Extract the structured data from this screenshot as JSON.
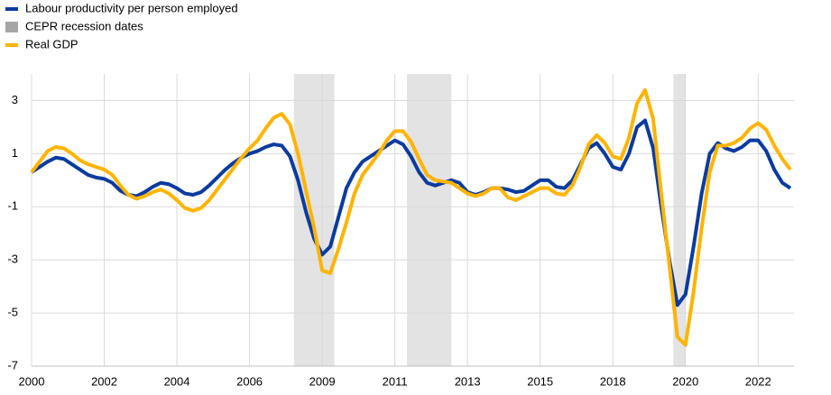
{
  "chart_data": {
    "type": "line",
    "x": [
      2000,
      2000.25,
      2000.5,
      2000.75,
      2001,
      2001.25,
      2001.5,
      2001.75,
      2002,
      2002.25,
      2002.5,
      2002.75,
      2003,
      2003.25,
      2003.5,
      2003.75,
      2004,
      2004.25,
      2004.5,
      2004.75,
      2005,
      2005.25,
      2005.5,
      2005.75,
      2006,
      2006.25,
      2006.5,
      2006.75,
      2007,
      2007.25,
      2007.5,
      2007.75,
      2008,
      2008.25,
      2008.5,
      2008.75,
      2009,
      2009.25,
      2009.5,
      2009.75,
      2010,
      2010.25,
      2010.5,
      2010.75,
      2011,
      2011.25,
      2011.5,
      2011.75,
      2012,
      2012.25,
      2012.5,
      2012.75,
      2013,
      2013.25,
      2013.5,
      2013.75,
      2014,
      2014.25,
      2014.5,
      2014.75,
      2015,
      2015.25,
      2015.5,
      2015.75,
      2016,
      2016.25,
      2016.5,
      2016.75,
      2017,
      2017.25,
      2017.5,
      2017.75,
      2018,
      2018.25,
      2018.5,
      2018.75,
      2019,
      2019.25,
      2019.5,
      2019.75,
      2020,
      2020.25,
      2020.5,
      2020.75,
      2021,
      2021.25,
      2021.5,
      2021.75,
      2022,
      2022.25,
      2022.5,
      2022.75,
      2023,
      2023.25,
      2023.5
    ],
    "series": [
      {
        "name": "Labour productivity per person employed",
        "color": "#0b3b9e",
        "values": [
          0.3,
          0.5,
          0.7,
          0.85,
          0.8,
          0.6,
          0.4,
          0.2,
          0.1,
          0.05,
          -0.1,
          -0.4,
          -0.55,
          -0.6,
          -0.45,
          -0.25,
          -0.1,
          -0.15,
          -0.3,
          -0.5,
          -0.55,
          -0.45,
          -0.2,
          0.1,
          0.4,
          0.65,
          0.85,
          1.0,
          1.1,
          1.25,
          1.35,
          1.3,
          0.9,
          0.0,
          -1.2,
          -2.2,
          -2.8,
          -2.5,
          -1.4,
          -0.3,
          0.3,
          0.7,
          0.9,
          1.1,
          1.3,
          1.5,
          1.35,
          0.9,
          0.3,
          -0.1,
          -0.2,
          -0.1,
          0.0,
          -0.1,
          -0.45,
          -0.55,
          -0.45,
          -0.3,
          -0.3,
          -0.35,
          -0.45,
          -0.4,
          -0.2,
          0.0,
          0.0,
          -0.25,
          -0.3,
          0.0,
          0.6,
          1.2,
          1.4,
          1.0,
          0.5,
          0.4,
          1.0,
          2.0,
          2.25,
          1.2,
          -1.0,
          -3.0,
          -4.7,
          -4.3,
          -2.5,
          -0.5,
          1.0,
          1.4,
          1.2,
          1.1,
          1.25,
          1.5,
          1.5,
          1.1,
          0.4,
          -0.1,
          -0.3
        ]
      },
      {
        "name": "Real GDP",
        "color": "#ffb400",
        "values": [
          0.3,
          0.7,
          1.1,
          1.25,
          1.2,
          1.0,
          0.75,
          0.6,
          0.5,
          0.4,
          0.2,
          -0.2,
          -0.55,
          -0.7,
          -0.6,
          -0.45,
          -0.35,
          -0.5,
          -0.75,
          -1.05,
          -1.15,
          -1.05,
          -0.75,
          -0.35,
          0.05,
          0.45,
          0.85,
          1.2,
          1.5,
          1.95,
          2.35,
          2.5,
          2.1,
          1.0,
          -0.4,
          -1.8,
          -3.4,
          -3.5,
          -2.6,
          -1.6,
          -0.5,
          0.2,
          0.6,
          1.0,
          1.5,
          1.85,
          1.85,
          1.45,
          0.8,
          0.2,
          0.0,
          -0.05,
          -0.1,
          -0.3,
          -0.5,
          -0.6,
          -0.5,
          -0.3,
          -0.3,
          -0.65,
          -0.75,
          -0.6,
          -0.45,
          -0.3,
          -0.3,
          -0.5,
          -0.55,
          -0.2,
          0.5,
          1.35,
          1.7,
          1.4,
          0.9,
          0.8,
          1.6,
          2.9,
          3.4,
          2.3,
          -0.5,
          -3.2,
          -5.9,
          -6.2,
          -4.2,
          -1.8,
          0.3,
          1.3,
          1.3,
          1.4,
          1.6,
          1.95,
          2.15,
          1.9,
          1.3,
          0.8,
          0.4
        ]
      }
    ],
    "recessions": {
      "name": "CEPR recession dates",
      "color": "#e3e3e3",
      "legend_color": "#a6a6a6",
      "periods": [
        [
          2008.125,
          2009.375
        ],
        [
          2011.625,
          2013.0
        ],
        [
          2019.875,
          2020.25
        ]
      ]
    },
    "xlim": [
      2000,
      2023.75
    ],
    "xticks": [
      2000,
      {
        "value": 2002.25,
        "label": "2002"
      },
      {
        "value": 2004.5,
        "label": "2004"
      },
      {
        "value": 2006.75,
        "label": "2006"
      },
      2009,
      {
        "value": 2011.25,
        "label": "2011"
      },
      {
        "value": 2013.5,
        "label": "2013"
      },
      {
        "value": 2015.75,
        "label": "2015"
      },
      2018,
      {
        "value": 2020.25,
        "label": "2020"
      },
      {
        "value": 2022.5,
        "label": "2022"
      }
    ],
    "ylim": [
      -7,
      4
    ],
    "yticks": [
      -7,
      -5,
      -3,
      -1,
      1,
      3
    ],
    "grid": true,
    "legend": "top-left"
  }
}
